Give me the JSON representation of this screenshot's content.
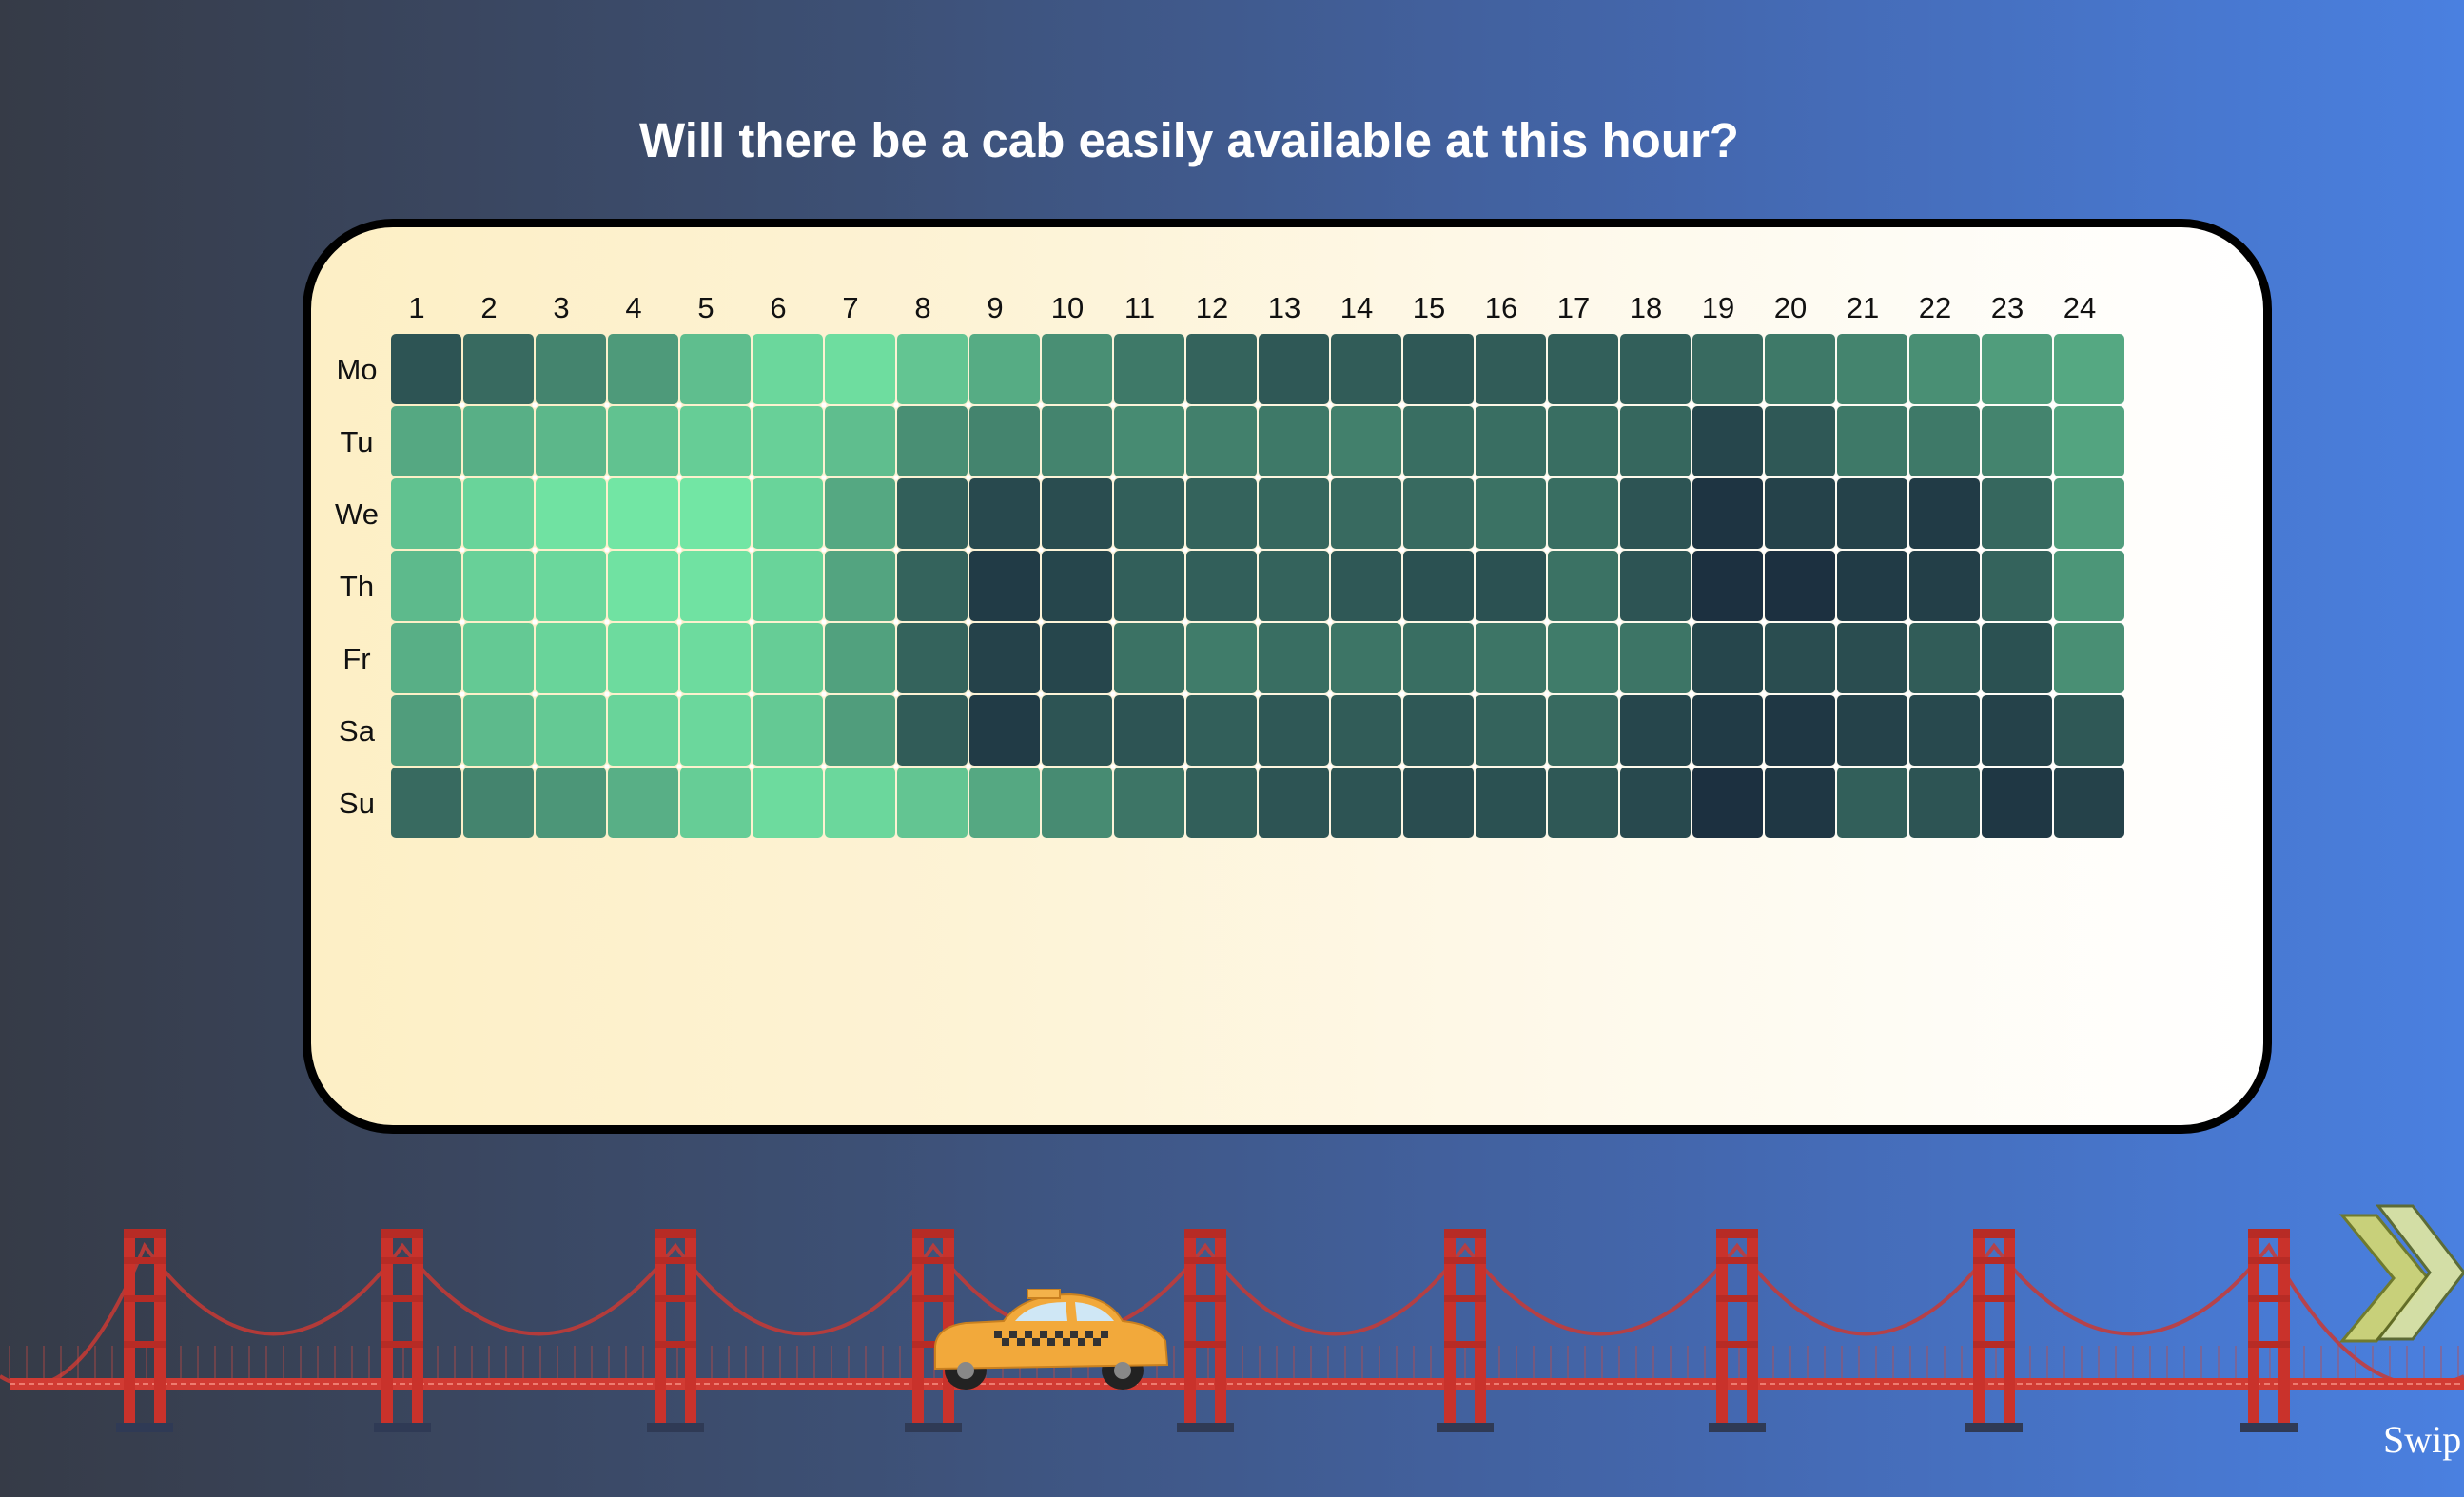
{
  "page": {
    "title": "Will there be a cab easily available at this hour?",
    "swipe_label": "Swip"
  },
  "chart_data": {
    "type": "heatmap",
    "title": "Will there be a cab easily available at this hour?",
    "x_labels": [
      "1",
      "2",
      "3",
      "4",
      "5",
      "6",
      "7",
      "8",
      "9",
      "10",
      "11",
      "12",
      "13",
      "14",
      "15",
      "16",
      "17",
      "18",
      "19",
      "20",
      "21",
      "22",
      "23",
      "24"
    ],
    "y_labels": [
      "Mo",
      "Tu",
      "We",
      "Th",
      "Fr",
      "Sa",
      "Su"
    ],
    "color_scale": [
      "#1c3040",
      "#72e6a4"
    ],
    "values": [
      [
        0.2,
        0.32,
        0.46,
        0.58,
        0.78,
        0.92,
        0.95,
        0.82,
        0.68,
        0.52,
        0.4,
        0.28,
        0.22,
        0.24,
        0.22,
        0.24,
        0.26,
        0.26,
        0.32,
        0.4,
        0.46,
        0.52,
        0.6,
        0.66
      ],
      [
        0.66,
        0.7,
        0.74,
        0.8,
        0.86,
        0.88,
        0.78,
        0.52,
        0.46,
        0.46,
        0.5,
        0.44,
        0.4,
        0.44,
        0.34,
        0.34,
        0.34,
        0.3,
        0.12,
        0.22,
        0.4,
        0.4,
        0.46,
        0.64
      ],
      [
        0.8,
        0.9,
        0.98,
        1.0,
        1.0,
        0.9,
        0.66,
        0.26,
        0.14,
        0.16,
        0.26,
        0.28,
        0.3,
        0.32,
        0.32,
        0.36,
        0.34,
        0.2,
        0.02,
        0.1,
        0.1,
        0.06,
        0.3,
        0.6
      ],
      [
        0.76,
        0.88,
        0.92,
        0.98,
        0.98,
        0.9,
        0.64,
        0.28,
        0.06,
        0.12,
        0.26,
        0.26,
        0.28,
        0.22,
        0.18,
        0.18,
        0.36,
        0.2,
        0.0,
        0.0,
        0.06,
        0.08,
        0.28,
        0.56
      ],
      [
        0.7,
        0.84,
        0.9,
        0.94,
        0.94,
        0.86,
        0.62,
        0.28,
        0.1,
        0.12,
        0.36,
        0.42,
        0.34,
        0.38,
        0.34,
        0.38,
        0.42,
        0.38,
        0.12,
        0.16,
        0.16,
        0.24,
        0.18,
        0.52
      ],
      [
        0.6,
        0.76,
        0.84,
        0.9,
        0.92,
        0.84,
        0.6,
        0.24,
        0.06,
        0.2,
        0.2,
        0.26,
        0.22,
        0.24,
        0.22,
        0.28,
        0.32,
        0.12,
        0.06,
        0.04,
        0.1,
        0.14,
        0.1,
        0.22
      ],
      [
        0.32,
        0.46,
        0.56,
        0.7,
        0.86,
        0.94,
        0.92,
        0.82,
        0.66,
        0.5,
        0.38,
        0.26,
        0.2,
        0.2,
        0.16,
        0.18,
        0.22,
        0.14,
        0.0,
        0.04,
        0.26,
        0.2,
        0.04,
        0.1
      ]
    ]
  }
}
